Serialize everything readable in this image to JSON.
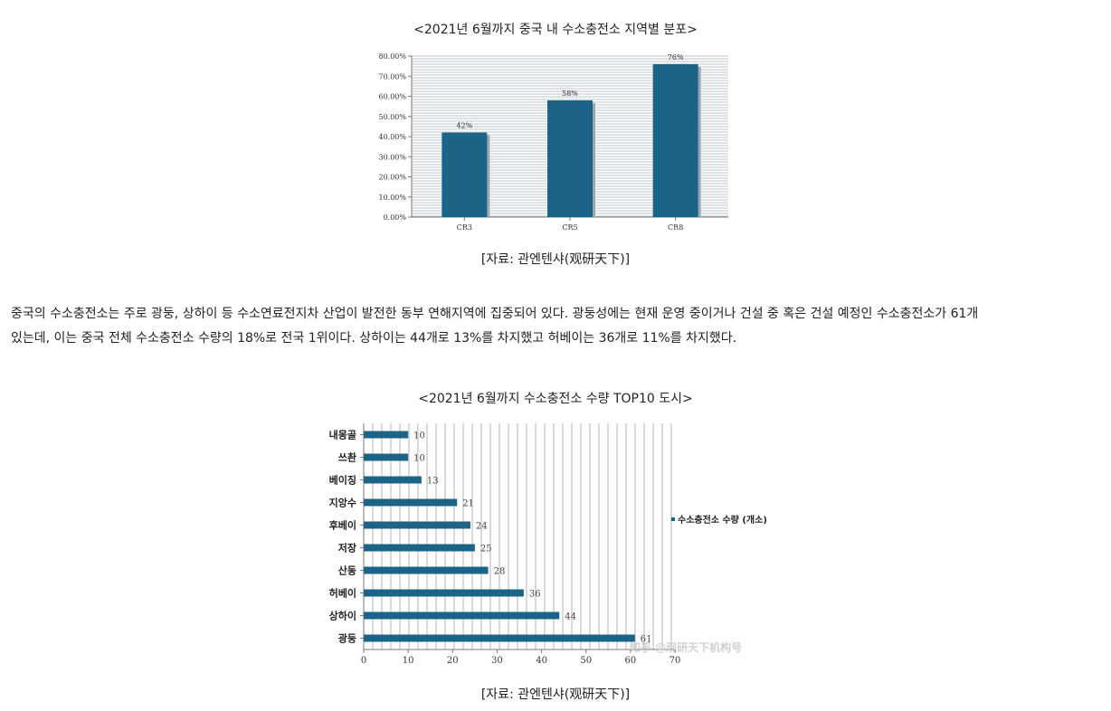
{
  "article": {
    "chart1_caption": "<2021년 6월까지 중국 내 수소충전소 지역별 분포>",
    "chart1_source": "[자료: 관엔텐샤(观研天下)]",
    "paragraph_line1": "중국의 수소충전소는 주로 광둥, 상하이 등 수소연료전지차 산업이 발전한 동부 연해지역에 집중되어 있다. 광둥성에는 현재 운영 중이거나 건설 중 혹은 건설 예정인 수소충전소가 61개",
    "paragraph_line2": "있는데, 이는 중국 전체 수소충전소 수량의 18%로 전국 1위이다. 상하이는 44개로 13%를 차지했고 허베이는 36개로 11%를 차지했다.",
    "chart2_caption": "<2021년 6월까지 수소충전소 수량 TOP10 도시>",
    "chart2_source": "[자료: 관엔텐샤(观研天下)]",
    "watermark": "知乎 @观研天下机构号"
  },
  "colors": {
    "bar": "#1c6388",
    "bar_dark": "#174f6d",
    "stripe": "#b8c4cc",
    "grid_vertical": "#b5b5b5",
    "axis": "#7a7a7a"
  },
  "chart_data": [
    {
      "type": "bar",
      "title": "",
      "categories": [
        "CR3",
        "CR5",
        "CR8"
      ],
      "values": [
        42,
        58,
        76
      ],
      "data_labels": [
        "42%",
        "58%",
        "76%"
      ],
      "y_ticks": [
        "0.00%",
        "10.00%",
        "20.00%",
        "30.00%",
        "40.00%",
        "50.00%",
        "60.00%",
        "70.00%",
        "80.00%"
      ],
      "ylim": [
        0,
        80
      ],
      "grid": "horizontal-striped",
      "legend": "none"
    },
    {
      "type": "bar",
      "orientation": "horizontal",
      "title": "",
      "categories": [
        "내몽골",
        "쓰촨",
        "베이징",
        "지앙수",
        "후베이",
        "저장",
        "산동",
        "허베이",
        "상하이",
        "광둥"
      ],
      "values": [
        10,
        10,
        13,
        21,
        24,
        25,
        28,
        36,
        44,
        61
      ],
      "x_ticks": [
        "0",
        "10",
        "20",
        "30",
        "40",
        "50",
        "60",
        "70"
      ],
      "xlim": [
        0,
        70
      ],
      "series": [
        {
          "name": "수소충전소 수량 (개소)",
          "values": [
            10,
            10,
            13,
            21,
            24,
            25,
            28,
            36,
            44,
            61
          ]
        }
      ],
      "grid": "vertical",
      "legend": "right"
    }
  ]
}
